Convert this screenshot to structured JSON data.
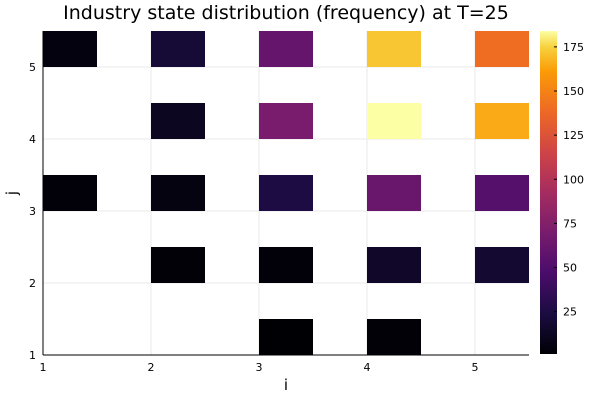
{
  "chart_data": {
    "type": "heatmap",
    "title": "Industry state distribution (frequency) at T=25",
    "xlabel": "i",
    "ylabel": "j",
    "xlim": [
      1,
      5.5
    ],
    "ylim": [
      1,
      5.5
    ],
    "x_ticks": [
      1,
      2,
      3,
      4,
      5
    ],
    "y_ticks": [
      1,
      2,
      3,
      4,
      5
    ],
    "grid": true,
    "colormap": "inferno",
    "colorbar": {
      "min": 1,
      "max": 184,
      "ticks": [
        25,
        50,
        75,
        100,
        125,
        150,
        175
      ],
      "placement": "right"
    },
    "cells": [
      {
        "i": 1,
        "j": 3,
        "value": 3
      },
      {
        "i": 1,
        "j": 5,
        "value": 5
      },
      {
        "i": 2,
        "j": 2,
        "value": 2
      },
      {
        "i": 2,
        "j": 3,
        "value": 6
      },
      {
        "i": 2,
        "j": 4,
        "value": 12
      },
      {
        "i": 2,
        "j": 5,
        "value": 20
      },
      {
        "i": 3,
        "j": 1,
        "value": 1
      },
      {
        "i": 3,
        "j": 2,
        "value": 3
      },
      {
        "i": 3,
        "j": 3,
        "value": 25
      },
      {
        "i": 3,
        "j": 4,
        "value": 70
      },
      {
        "i": 3,
        "j": 5,
        "value": 60
      },
      {
        "i": 4,
        "j": 1,
        "value": 2
      },
      {
        "i": 4,
        "j": 2,
        "value": 15
      },
      {
        "i": 4,
        "j": 3,
        "value": 62
      },
      {
        "i": 4,
        "j": 4,
        "value": 184
      },
      {
        "i": 4,
        "j": 5,
        "value": 172
      },
      {
        "i": 5,
        "j": 2,
        "value": 18
      },
      {
        "i": 5,
        "j": 3,
        "value": 52
      },
      {
        "i": 5,
        "j": 4,
        "value": 165
      },
      {
        "i": 5,
        "j": 5,
        "value": 140
      }
    ]
  }
}
